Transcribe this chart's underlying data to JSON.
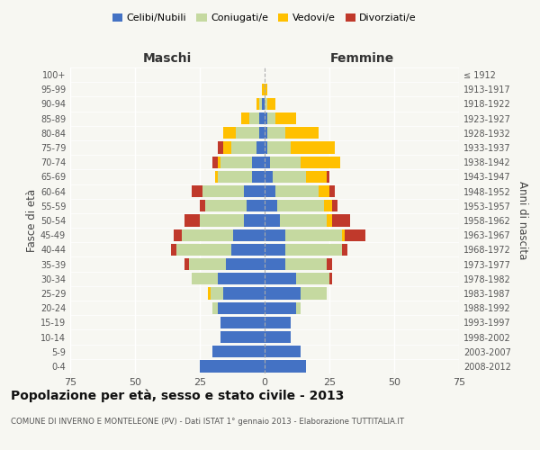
{
  "age_groups": [
    "100+",
    "95-99",
    "90-94",
    "85-89",
    "80-84",
    "75-79",
    "70-74",
    "65-69",
    "60-64",
    "55-59",
    "50-54",
    "45-49",
    "40-44",
    "35-39",
    "30-34",
    "25-29",
    "20-24",
    "15-19",
    "10-14",
    "5-9",
    "0-4"
  ],
  "birth_years": [
    "≤ 1912",
    "1913-1917",
    "1918-1922",
    "1923-1927",
    "1928-1932",
    "1933-1937",
    "1938-1942",
    "1943-1947",
    "1948-1952",
    "1953-1957",
    "1958-1962",
    "1963-1967",
    "1968-1972",
    "1973-1977",
    "1978-1982",
    "1983-1987",
    "1988-1992",
    "1993-1997",
    "1998-2002",
    "2003-2007",
    "2008-2012"
  ],
  "colors": {
    "celibe": "#4472c4",
    "coniugato": "#c5d9a0",
    "vedovo": "#ffc000",
    "divorziato": "#c0392b"
  },
  "maschi": {
    "celibe": [
      0,
      0,
      1,
      2,
      2,
      3,
      5,
      5,
      8,
      7,
      8,
      12,
      13,
      15,
      18,
      16,
      18,
      17,
      17,
      20,
      25
    ],
    "coniugato": [
      0,
      0,
      1,
      4,
      9,
      10,
      12,
      13,
      16,
      16,
      17,
      20,
      21,
      14,
      10,
      5,
      2,
      0,
      0,
      0,
      0
    ],
    "vedovo": [
      0,
      1,
      1,
      3,
      5,
      3,
      1,
      1,
      0,
      0,
      0,
      0,
      0,
      0,
      0,
      1,
      0,
      0,
      0,
      0,
      0
    ],
    "divorziato": [
      0,
      0,
      0,
      0,
      0,
      2,
      2,
      0,
      4,
      2,
      6,
      3,
      2,
      2,
      0,
      0,
      0,
      0,
      0,
      0,
      0
    ]
  },
  "femmine": {
    "nubile": [
      0,
      0,
      0,
      1,
      1,
      1,
      2,
      3,
      4,
      5,
      6,
      8,
      8,
      8,
      12,
      14,
      12,
      10,
      10,
      14,
      16
    ],
    "coniugata": [
      0,
      0,
      1,
      3,
      7,
      9,
      12,
      13,
      17,
      18,
      18,
      22,
      22,
      16,
      13,
      10,
      2,
      0,
      0,
      0,
      0
    ],
    "vedova": [
      0,
      1,
      3,
      8,
      13,
      17,
      15,
      8,
      4,
      3,
      2,
      1,
      0,
      0,
      0,
      0,
      0,
      0,
      0,
      0,
      0
    ],
    "divorziata": [
      0,
      0,
      0,
      0,
      0,
      0,
      0,
      1,
      2,
      2,
      7,
      8,
      2,
      2,
      1,
      0,
      0,
      0,
      0,
      0,
      0
    ]
  },
  "xlim": 75,
  "title": "Popolazione per età, sesso e stato civile - 2013",
  "subtitle": "COMUNE DI INVERNO E MONTELEONE (PV) - Dati ISTAT 1° gennaio 2013 - Elaborazione TUTTITALIA.IT",
  "ylabel_left": "Fasce di età",
  "ylabel_right": "Anni di nascita",
  "xlabel_left": "Maschi",
  "xlabel_right": "Femmine",
  "bg_color": "#f7f7f2",
  "legend_labels": [
    "Celibi/Nubili",
    "Coniugati/e",
    "Vedovi/e",
    "Divorziati/e"
  ]
}
